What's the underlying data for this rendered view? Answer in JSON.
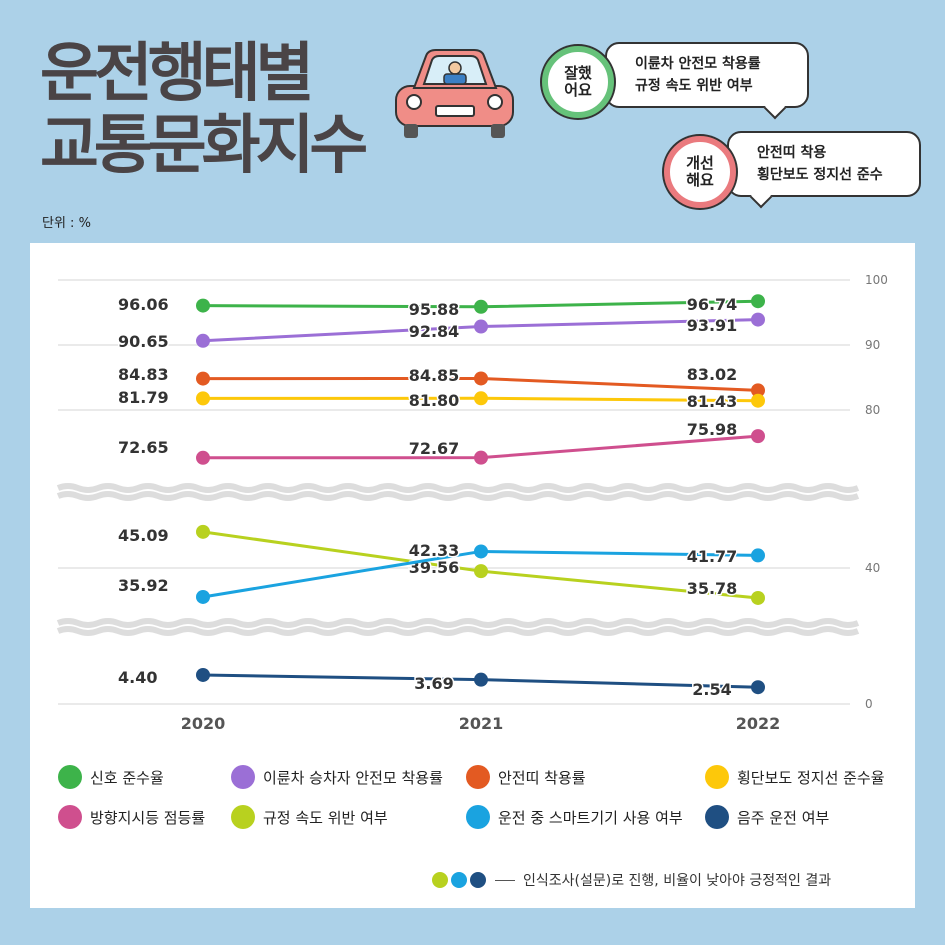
{
  "title": {
    "line1": "운전행태별",
    "line2": "교통문화지수"
  },
  "unit": "단위 : %",
  "bubbles": {
    "good": {
      "badge_line1": "잘했",
      "badge_line2": "어요",
      "line1": "이륜차 안전모 착용률",
      "line2": "규정 속도 위반 여부"
    },
    "bad": {
      "badge_line1": "개선",
      "badge_line2": "해요",
      "line1": "안전띠 착용",
      "line2": "횡단보도 정지선 준수"
    }
  },
  "footnote": "인식조사(설문)로 진행, 비율이 낮아야 긍정적인 결과",
  "colors": {
    "background": "#acd1e8",
    "title": "#4a4446",
    "signal": "#3db34a",
    "helmet": "#9b6fd6",
    "seatbelt": "#e35a22",
    "crosswalk": "#fdc80a",
    "turn_signal": "#cf4f8e",
    "speeding": "#b8d11f",
    "smartphone": "#1aa3e0",
    "drunk": "#1f4f82"
  },
  "chart_data": {
    "type": "line",
    "x": [
      "2020",
      "2021",
      "2022"
    ],
    "y_ticks": [
      "100",
      "90",
      "80",
      "40",
      "0"
    ],
    "broken_axis": true,
    "series": [
      {
        "key": "signal",
        "name": "신호 준수율",
        "values": [
          96.06,
          95.88,
          96.74
        ],
        "labels": [
          "96.06",
          "95.88",
          "96.74"
        ]
      },
      {
        "key": "helmet",
        "name": "이륜차 승차자 안전모 착용률",
        "values": [
          90.65,
          92.84,
          93.91
        ],
        "labels": [
          "90.65",
          "92.84",
          "93.91"
        ]
      },
      {
        "key": "seatbelt",
        "name": "안전띠 착용률",
        "values": [
          84.83,
          84.85,
          83.02
        ],
        "labels": [
          "84.83",
          "84.85",
          "83.02"
        ]
      },
      {
        "key": "crosswalk",
        "name": "횡단보도 정지선 준수율",
        "values": [
          81.79,
          81.8,
          81.43
        ],
        "labels": [
          "81.79",
          "81.80",
          "81.43"
        ]
      },
      {
        "key": "turn_signal",
        "name": "방향지시등 점등률",
        "values": [
          72.65,
          72.67,
          75.98
        ],
        "labels": [
          "72.65",
          "72.67",
          "75.98"
        ]
      },
      {
        "key": "speeding",
        "name": "규정 속도 위반 여부",
        "values": [
          45.09,
          39.56,
          35.78
        ],
        "labels": [
          "45.09",
          "39.56",
          "35.78"
        ]
      },
      {
        "key": "smartphone",
        "name": "운전 중 스마트기기 사용 여부",
        "values": [
          35.92,
          42.33,
          41.77
        ],
        "labels": [
          "35.92",
          "42.33",
          "41.77"
        ]
      },
      {
        "key": "drunk",
        "name": "음주 운전 여부",
        "values": [
          4.4,
          3.69,
          2.54
        ],
        "labels": [
          "4.40",
          "3.69",
          "2.54"
        ]
      }
    ]
  }
}
